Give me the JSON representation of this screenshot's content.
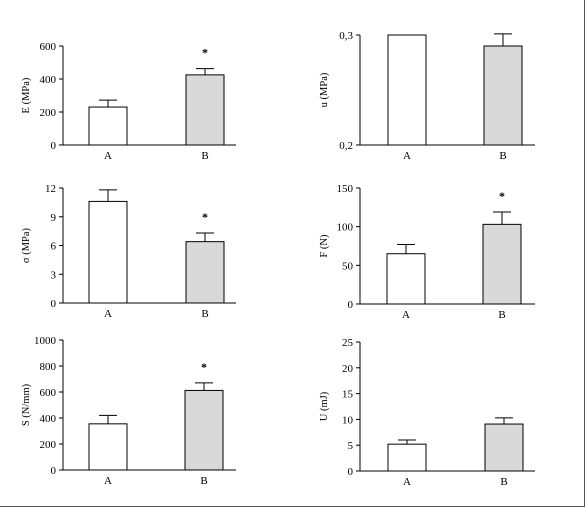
{
  "figure": {
    "background": "#ffffff",
    "frame_color": "#555555"
  },
  "colors": {
    "group_a": "#ffffff",
    "group_b": "#d9d9d9",
    "stroke": "#000000"
  },
  "chart_data": [
    {
      "type": "bar",
      "ylabel": "E (MPa)",
      "ylim": [
        0,
        600
      ],
      "yticks": [
        "0",
        "200",
        "400",
        "600"
      ],
      "ytick_values": [
        0,
        200,
        400,
        600
      ],
      "categories": [
        "A",
        "B"
      ],
      "values": [
        230,
        425
      ],
      "errors": [
        42,
        38
      ],
      "significance": [
        "",
        "*"
      ]
    },
    {
      "type": "bar",
      "ylabel": "u (MPa)",
      "ylim": [
        0.2,
        0.3
      ],
      "yticks": [
        "0,2",
        "0,3"
      ],
      "ytick_values": [
        0.2,
        0.3
      ],
      "categories": [
        "A",
        "B"
      ],
      "values": [
        0.3,
        0.29
      ],
      "errors": [
        0,
        0.011
      ],
      "significance": [
        "",
        ""
      ]
    },
    {
      "type": "bar",
      "ylabel": "σ (MPa)",
      "ylim": [
        0,
        12
      ],
      "yticks": [
        "0",
        "3",
        "6",
        "9",
        "12"
      ],
      "ytick_values": [
        0,
        3,
        6,
        9,
        12
      ],
      "categories": [
        "A",
        "B"
      ],
      "values": [
        10.6,
        6.4
      ],
      "errors": [
        1.2,
        0.9
      ],
      "significance": [
        "",
        "*"
      ]
    },
    {
      "type": "bar",
      "ylabel": "F (N)",
      "ylim": [
        0,
        150
      ],
      "yticks": [
        "0",
        "50",
        "100",
        "150"
      ],
      "ytick_values": [
        0,
        50,
        100,
        150
      ],
      "categories": [
        "A",
        "B"
      ],
      "values": [
        65,
        103
      ],
      "errors": [
        12,
        16
      ],
      "significance": [
        "",
        "*"
      ]
    },
    {
      "type": "bar",
      "ylabel": "S (N/mm)",
      "ylim": [
        0,
        1000
      ],
      "yticks": [
        "0",
        "200",
        "400",
        "600",
        "800",
        "1000"
      ],
      "ytick_values": [
        0,
        200,
        400,
        600,
        800,
        1000
      ],
      "categories": [
        "A",
        "B"
      ],
      "values": [
        355,
        612
      ],
      "errors": [
        65,
        58
      ],
      "significance": [
        "",
        "*"
      ]
    },
    {
      "type": "bar",
      "ylabel": "U (mJ)",
      "ylim": [
        0,
        25
      ],
      "yticks": [
        "0",
        "5",
        "10",
        "15",
        "20",
        "25"
      ],
      "ytick_values": [
        0,
        5,
        10,
        15,
        20,
        25
      ],
      "categories": [
        "A",
        "B"
      ],
      "values": [
        5.2,
        9.1
      ],
      "errors": [
        0.8,
        1.2
      ],
      "significance": [
        "",
        ""
      ]
    }
  ]
}
